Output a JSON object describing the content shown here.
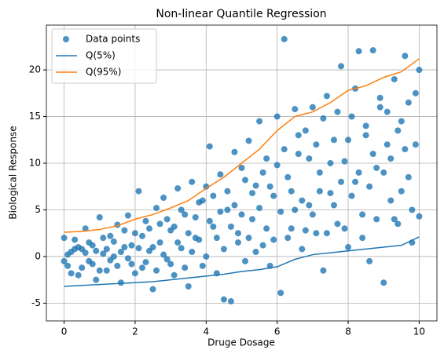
{
  "chart_data": {
    "type": "scatter",
    "title": "Non-linear Quantile Regression",
    "xlabel": "Druge Dosage",
    "ylabel": "Biological Response",
    "xlim": [
      -0.5,
      10.5
    ],
    "ylim": [
      -6.9,
      24.8
    ],
    "xticks": [
      0,
      2,
      4,
      6,
      8,
      10
    ],
    "yticks": [
      -5,
      0,
      5,
      10,
      15,
      20
    ],
    "grid": true,
    "legend": "upper left",
    "series": [
      {
        "name": "Data points",
        "type": "scatter",
        "color": "#1f77b4",
        "x": [
          0.0,
          0.1,
          0.2,
          0.3,
          0.4,
          0.5,
          0.6,
          0.7,
          0.8,
          0.9,
          1.0,
          1.1,
          1.2,
          1.3,
          1.4,
          1.5,
          1.6,
          1.7,
          1.8,
          1.9,
          2.0,
          2.1,
          2.2,
          2.3,
          2.4,
          2.5,
          2.6,
          2.7,
          2.8,
          2.9,
          3.0,
          3.1,
          3.2,
          3.3,
          3.4,
          3.5,
          3.6,
          3.7,
          3.8,
          3.9,
          4.0,
          4.1,
          4.2,
          4.3,
          4.4,
          4.5,
          4.6,
          4.7,
          4.8,
          4.9,
          5.0,
          5.1,
          5.2,
          5.3,
          5.4,
          5.5,
          5.6,
          5.7,
          5.8,
          5.9,
          6.0,
          6.1,
          6.2,
          6.3,
          6.4,
          6.5,
          6.6,
          6.7,
          6.8,
          6.9,
          7.0,
          7.1,
          7.2,
          7.3,
          7.4,
          7.5,
          7.6,
          7.7,
          7.8,
          7.9,
          8.0,
          8.1,
          8.2,
          8.3,
          8.4,
          8.5,
          8.6,
          8.7,
          8.8,
          8.9,
          9.0,
          9.1,
          9.2,
          9.3,
          9.4,
          9.5,
          9.6,
          9.7,
          9.8,
          9.9,
          10.0,
          0.0,
          0.1,
          0.2,
          0.3,
          0.4,
          0.5,
          0.6,
          0.7,
          0.8,
          0.9,
          1.0,
          1.1,
          1.2,
          1.3,
          1.4,
          1.5,
          1.6,
          1.7,
          1.8,
          1.9,
          2.0,
          2.1,
          2.2,
          2.3,
          2.4,
          2.5,
          2.6,
          2.7,
          2.8,
          2.9,
          3.0,
          3.1,
          3.2,
          3.3,
          3.4,
          3.5,
          3.6,
          3.7,
          3.8,
          3.9,
          4.0,
          4.1,
          4.2,
          4.3,
          4.4,
          4.5,
          4.6,
          4.7,
          4.8,
          4.9,
          5.0,
          5.1,
          5.2,
          5.3,
          5.4,
          5.5,
          5.6,
          5.7,
          5.8,
          5.9,
          6.0,
          6.1,
          6.2,
          6.3,
          6.4,
          6.5,
          6.6,
          6.7,
          6.8,
          6.9,
          7.0,
          7.1,
          7.2,
          7.3,
          7.4,
          7.5,
          7.6,
          7.7,
          7.8,
          7.9,
          8.0,
          8.1,
          8.2,
          8.3,
          8.4,
          8.5,
          8.6,
          8.7,
          8.8,
          8.9,
          9.0,
          9.1,
          9.2,
          9.3,
          9.4,
          9.5,
          9.6,
          9.7,
          9.8,
          9.9,
          10.0
        ],
        "values": [
          2.0,
          -1.0,
          0.5,
          1.8,
          -2.0,
          0.8,
          3.0,
          -0.5,
          1.2,
          -2.5,
          4.2,
          0.3,
          -1.5,
          2.2,
          0.0,
          3.4,
          -2.8,
          1.0,
          4.4,
          -0.8,
          2.5,
          7.0,
          -1.2,
          3.8,
          0.6,
          -3.5,
          5.2,
          1.5,
          6.3,
          -0.3,
          2.8,
          -2.0,
          7.3,
          0.9,
          4.5,
          -3.2,
          8.0,
          2.0,
          5.8,
          -1.0,
          7.5,
          11.8,
          3.2,
          -1.8,
          8.8,
          -4.6,
          5.0,
          -4.8,
          11.2,
          2.5,
          9.5,
          -0.5,
          12.4,
          4.0,
          7.6,
          14.5,
          1.2,
          10.5,
          -1.0,
          6.5,
          15.0,
          -3.9,
          23.3,
          8.5,
          3.0,
          15.8,
          11.0,
          0.8,
          13.5,
          5.5,
          16.0,
          2.5,
          9.0,
          -1.5,
          17.2,
          6.8,
          12.5,
          3.5,
          20.4,
          10.2,
          1.0,
          15.0,
          8.0,
          22.0,
          4.5,
          13.0,
          -0.5,
          22.1,
          9.5,
          17.0,
          -2.8,
          12.0,
          6.0,
          19.0,
          3.5,
          14.5,
          21.5,
          8.5,
          1.5,
          17.5,
          20.0,
          -0.5,
          0.2,
          -1.8,
          0.8,
          1.0,
          -1.2,
          0.4,
          1.5,
          -0.8,
          0.6,
          -1.5,
          2.0,
          0.8,
          -0.4,
          1.6,
          -1.0,
          0.5,
          2.8,
          -0.2,
          1.2,
          -1.8,
          0.9,
          2.2,
          -0.6,
          3.0,
          1.0,
          -1.5,
          3.5,
          0.2,
          4.0,
          -0.8,
          3.2,
          1.5,
          5.0,
          -1.2,
          2.5,
          0.5,
          4.2,
          1.8,
          6.0,
          0.0,
          3.8,
          6.5,
          2.0,
          4.8,
          0.8,
          7.0,
          3.2,
          5.5,
          1.5,
          4.5,
          8.2,
          2.0,
          6.8,
          0.5,
          5.2,
          9.0,
          3.0,
          7.5,
          1.8,
          9.8,
          4.8,
          11.5,
          2.0,
          7.0,
          5.0,
          13.0,
          6.0,
          2.8,
          10.5,
          4.5,
          12.0,
          7.0,
          14.8,
          2.5,
          10.0,
          5.5,
          15.5,
          8.0,
          3.0,
          12.5,
          6.5,
          18.0,
          9.0,
          2.0,
          14.0,
          7.5,
          11.0,
          4.0,
          16.0,
          9.0,
          15.5,
          10.5,
          4.0,
          13.5,
          7.0,
          11.5,
          16.5,
          5.0,
          12.0,
          4.3
        ]
      },
      {
        "name": "Q(5%)",
        "type": "line",
        "color": "#1f77b4",
        "x": [
          0,
          0.5,
          1,
          1.5,
          2,
          2.5,
          3,
          3.5,
          4,
          4.5,
          5,
          5.5,
          6,
          6.5,
          7,
          7.5,
          8,
          8.5,
          9,
          9.5,
          10
        ],
        "values": [
          -3.2,
          -3.1,
          -3.0,
          -2.9,
          -2.8,
          -2.7,
          -2.5,
          -2.3,
          -2.1,
          -1.9,
          -1.6,
          -1.4,
          -1.1,
          -0.3,
          0.2,
          0.4,
          0.6,
          0.8,
          1.0,
          1.2,
          2.1
        ]
      },
      {
        "name": "Q(95%)",
        "type": "line",
        "color": "#ff7f0e",
        "x": [
          0,
          0.5,
          1,
          1.5,
          2,
          2.5,
          3,
          3.5,
          4,
          4.5,
          5,
          5.5,
          6,
          6.5,
          7,
          7.5,
          8,
          8.5,
          9,
          9.5,
          10
        ],
        "values": [
          2.6,
          2.7,
          2.9,
          3.3,
          4.0,
          4.5,
          5.2,
          6.0,
          7.3,
          8.5,
          10.0,
          11.5,
          13.5,
          15.0,
          15.5,
          16.5,
          17.8,
          18.3,
          19.2,
          19.8,
          21.2
        ]
      }
    ]
  }
}
